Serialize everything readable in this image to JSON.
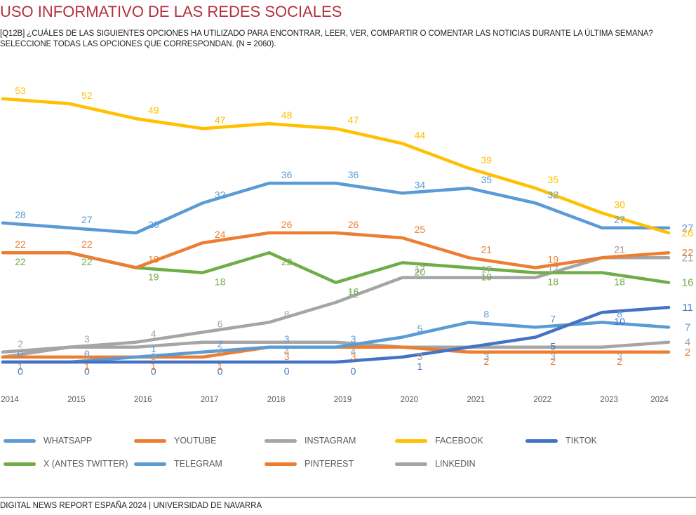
{
  "header": {
    "title": "USO INFORMATIVO DE LAS REDES SOCIALES",
    "subtitle_line1": "[Q12B] ¿CUÁLES DE LAS SIGUIENTES OPCIONES HA UTILIZADO PARA ENCONTRAR, LEER, VER, COMPARTIR O COMENTAR LAS NOTICIAS DURANTE LA ÚLTIMA SEMANA?",
    "subtitle_line2": "SELECCIONE TODAS LAS OPCIONES QUE CORRESPONDAN. (N = 2060)."
  },
  "footer": {
    "text": "DIGITAL NEWS REPORT ESPAÑA 2024 | UNIVERSIDAD DE NAVARRA"
  },
  "chart_data": {
    "type": "line",
    "title": "USO INFORMATIVO DE LAS REDES SOCIALES",
    "xlabel": "",
    "ylabel": "",
    "x": [
      "2014",
      "2015",
      "2016",
      "2017",
      "2018",
      "2019",
      "2020",
      "2021",
      "2022",
      "2023",
      "2024"
    ],
    "ylim": [
      0,
      55
    ],
    "grid": false,
    "legend_position": "bottom",
    "series": [
      {
        "name": "WHATSAPP",
        "color": "#5b9bd5",
        "label_pos": "above",
        "values": [
          28,
          27,
          26,
          32,
          36,
          36,
          34,
          35,
          32,
          27,
          27
        ]
      },
      {
        "name": "YOUTUBE",
        "color": "#ed7d31",
        "label_pos": "above",
        "values": [
          22,
          22,
          19,
          24,
          26,
          26,
          25,
          21,
          19,
          21,
          22
        ]
      },
      {
        "name": "INSTAGRAM",
        "color": "#a5a5a5",
        "label_pos": "above",
        "values": [
          2,
          3,
          4,
          6,
          8,
          12,
          17,
          17,
          17,
          21,
          21
        ]
      },
      {
        "name": "FACEBOOK",
        "color": "#ffc000",
        "label_pos": "above",
        "values": [
          53,
          52,
          49,
          47,
          48,
          47,
          44,
          39,
          35,
          30,
          26
        ]
      },
      {
        "name": "TIKTOK",
        "color": "#4472c4",
        "label_pos": "below",
        "values": [
          0,
          0,
          0,
          0,
          0,
          0,
          1,
          3,
          5,
          10,
          11
        ]
      },
      {
        "name": "X (ANTES TWITTER)",
        "color": "#70ad47",
        "label_pos": "below",
        "values": [
          22,
          22,
          19,
          18,
          22,
          16,
          20,
          19,
          18,
          18,
          16
        ]
      },
      {
        "name": "TELEGRAM",
        "color": "#5b9bd5",
        "label_pos": "above",
        "values": [
          0,
          0,
          1,
          2,
          3,
          3,
          5,
          8,
          7,
          8,
          7
        ]
      },
      {
        "name": "PINTEREST",
        "color": "#ed7d31",
        "label_pos": "below",
        "values": [
          1,
          1,
          1,
          1,
          3,
          3,
          3,
          2,
          2,
          2,
          2
        ]
      },
      {
        "name": "LINKEDIN",
        "color": "#a5a5a5",
        "label_pos": "below",
        "values": [
          1,
          3,
          3,
          4,
          4,
          4,
          3,
          3,
          3,
          3,
          4
        ]
      }
    ]
  }
}
